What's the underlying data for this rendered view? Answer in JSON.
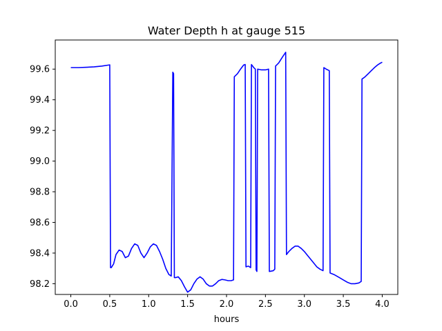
{
  "chart_data": {
    "type": "line",
    "title": "Water Depth h at gauge 515",
    "xlabel": "hours",
    "ylabel": "",
    "xlim": [
      -0.2,
      4.2
    ],
    "ylim": [
      98.13,
      99.79
    ],
    "xticks": [
      0.0,
      0.5,
      1.0,
      1.5,
      2.0,
      2.5,
      3.0,
      3.5,
      4.0
    ],
    "xtick_labels": [
      "0.0",
      "0.5",
      "1.0",
      "1.5",
      "2.0",
      "2.5",
      "3.0",
      "3.5",
      "4.0"
    ],
    "yticks": [
      98.2,
      98.4,
      98.6,
      98.8,
      99.0,
      99.2,
      99.4,
      99.6
    ],
    "ytick_labels": [
      "98.2",
      "98.4",
      "98.6",
      "98.8",
      "99.0",
      "99.2",
      "99.4",
      "99.6"
    ],
    "grid": false,
    "series": [
      {
        "color": "#0000ff",
        "x": [
          0.0,
          0.1,
          0.2,
          0.3,
          0.4,
          0.49,
          0.5,
          0.51,
          0.52,
          0.55,
          0.58,
          0.62,
          0.66,
          0.7,
          0.74,
          0.78,
          0.82,
          0.86,
          0.9,
          0.94,
          0.98,
          1.02,
          1.06,
          1.1,
          1.14,
          1.18,
          1.22,
          1.26,
          1.29,
          1.31,
          1.32,
          1.33,
          1.34,
          1.35,
          1.38,
          1.42,
          1.46,
          1.5,
          1.54,
          1.58,
          1.62,
          1.66,
          1.7,
          1.74,
          1.78,
          1.82,
          1.86,
          1.9,
          1.94,
          1.98,
          2.02,
          2.06,
          2.09,
          2.1,
          2.14,
          2.18,
          2.22,
          2.24,
          2.25,
          2.28,
          2.31,
          2.32,
          2.35,
          2.37,
          2.38,
          2.39,
          2.4,
          2.45,
          2.5,
          2.54,
          2.55,
          2.6,
          2.62,
          2.63,
          2.67,
          2.72,
          2.76,
          2.77,
          2.8,
          2.84,
          2.88,
          2.92,
          2.96,
          3.0,
          3.04,
          3.08,
          3.12,
          3.16,
          3.2,
          3.24,
          3.25,
          3.28,
          3.32,
          3.33,
          3.38,
          3.45,
          3.5,
          3.55,
          3.6,
          3.65,
          3.7,
          3.73,
          3.74,
          3.78,
          3.82,
          3.86,
          3.9,
          3.94,
          3.98,
          4.0
        ],
        "y": [
          99.61,
          99.61,
          99.612,
          99.615,
          99.62,
          99.627,
          99.628,
          98.305,
          98.305,
          98.33,
          98.39,
          98.42,
          98.41,
          98.37,
          98.38,
          98.43,
          98.46,
          98.45,
          98.4,
          98.37,
          98.4,
          98.44,
          98.46,
          98.45,
          98.41,
          98.36,
          98.3,
          98.26,
          98.25,
          99.58,
          99.57,
          98.24,
          98.24,
          98.24,
          98.245,
          98.22,
          98.18,
          98.145,
          98.16,
          98.2,
          98.23,
          98.245,
          98.23,
          98.2,
          98.185,
          98.185,
          98.2,
          98.22,
          98.228,
          98.225,
          98.22,
          98.22,
          98.225,
          99.55,
          99.57,
          99.6,
          99.627,
          99.63,
          98.31,
          98.315,
          98.305,
          99.63,
          99.61,
          99.6,
          98.29,
          98.28,
          99.6,
          99.595,
          99.595,
          99.6,
          98.28,
          98.285,
          98.295,
          99.62,
          99.64,
          99.68,
          99.71,
          98.39,
          98.41,
          98.43,
          98.445,
          98.445,
          98.43,
          98.41,
          98.385,
          98.36,
          98.335,
          98.31,
          98.295,
          98.285,
          99.61,
          99.6,
          99.59,
          98.27,
          98.26,
          98.24,
          98.225,
          98.21,
          98.2,
          98.2,
          98.205,
          98.215,
          99.535,
          99.55,
          99.57,
          99.59,
          99.61,
          99.627,
          99.64,
          99.645
        ]
      }
    ]
  }
}
